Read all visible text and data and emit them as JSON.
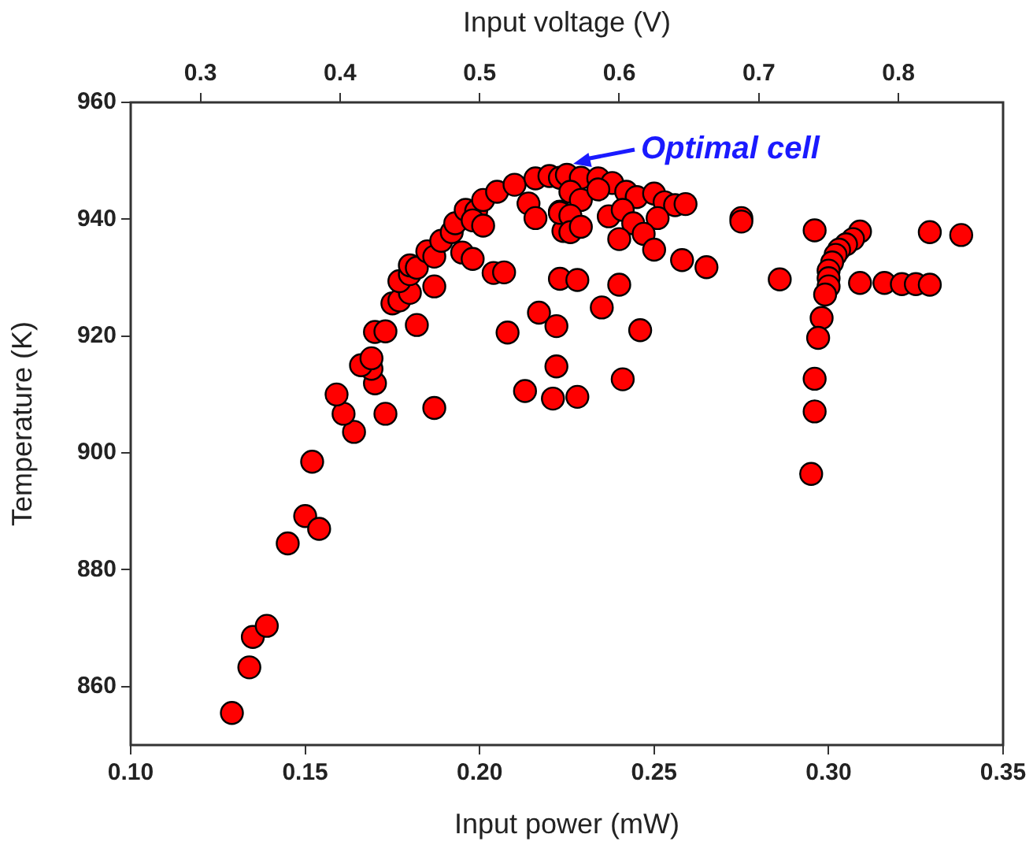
{
  "chart_data": {
    "type": "scatter",
    "xlabel": "Input power (mW)",
    "ylabel": "Temperature (K)",
    "x2label": "Input voltage (V)",
    "xlim": [
      0.1,
      0.35
    ],
    "xticks": [
      {
        "value": 0.1,
        "label": "0.10"
      },
      {
        "value": 0.15,
        "label": "0.15"
      },
      {
        "value": 0.2,
        "label": "0.20"
      },
      {
        "value": 0.25,
        "label": "0.25"
      },
      {
        "value": 0.3,
        "label": "0.30"
      },
      {
        "value": 0.35,
        "label": "0.35"
      }
    ],
    "x2lim": [
      0.25,
      0.875
    ],
    "x2ticks": [
      0.3,
      0.4,
      0.5,
      0.6,
      0.7,
      0.8
    ],
    "ylim": [
      850,
      960
    ],
    "yticks": [
      860,
      880,
      900,
      920,
      940,
      960
    ],
    "grid": false,
    "legend": false,
    "marker": "circle",
    "annotations": [
      {
        "text": "Optimal cell",
        "x": 0.225,
        "y": 947.6
      }
    ],
    "series": [
      {
        "color": "#ff0000",
        "x": [
          0.129,
          0.134,
          0.135,
          0.139,
          0.145,
          0.15,
          0.154,
          0.152,
          0.164,
          0.161,
          0.159,
          0.173,
          0.187,
          0.213,
          0.221,
          0.228,
          0.296,
          0.295,
          0.17,
          0.169,
          0.166,
          0.169,
          0.17,
          0.173,
          0.182,
          0.175,
          0.177,
          0.18,
          0.177,
          0.187,
          0.18,
          0.18,
          0.182,
          0.185,
          0.187,
          0.195,
          0.198,
          0.189,
          0.192,
          0.193,
          0.196,
          0.199,
          0.198,
          0.201,
          0.201,
          0.205,
          0.21,
          0.214,
          0.216,
          0.216,
          0.22,
          0.204,
          0.207,
          0.217,
          0.208,
          0.222,
          0.222,
          0.223,
          0.224,
          0.223,
          0.223,
          0.225,
          0.229,
          0.234,
          0.238,
          0.242,
          0.245,
          0.25,
          0.253,
          0.256,
          0.259,
          0.226,
          0.229,
          0.234,
          0.223,
          0.226,
          0.226,
          0.229,
          0.237,
          0.241,
          0.244,
          0.251,
          0.247,
          0.24,
          0.25,
          0.258,
          0.265,
          0.275,
          0.275,
          0.286,
          0.296,
          0.309,
          0.329,
          0.338,
          0.309,
          0.316,
          0.321,
          0.325,
          0.329,
          0.307,
          0.305,
          0.303,
          0.302,
          0.301,
          0.3,
          0.3,
          0.3,
          0.299,
          0.298,
          0.297,
          0.296,
          0.228,
          0.24,
          0.235,
          0.246,
          0.241
        ],
        "values": [
          855.5,
          863.3,
          868.5,
          870.4,
          884.5,
          889.2,
          887,
          898.5,
          903.6,
          906.7,
          910,
          906.7,
          907.7,
          910.6,
          909.3,
          909.6,
          907.1,
          896.4,
          911.9,
          914.4,
          915,
          916.2,
          920.7,
          920.8,
          921.9,
          925.6,
          926.1,
          927.4,
          929.4,
          928.5,
          930.6,
          932.1,
          931.7,
          934.5,
          933.6,
          934.3,
          933.2,
          936.3,
          937.8,
          939.3,
          941.6,
          941.4,
          939.8,
          938.9,
          943.3,
          944.7,
          945.9,
          942.7,
          940.2,
          947,
          947.4,
          930.8,
          930.9,
          924,
          920.6,
          921.7,
          914.8,
          941.3,
          938,
          929.8,
          947.1,
          947.6,
          947.1,
          947,
          946.2,
          944.7,
          943.8,
          944.4,
          942.9,
          942.4,
          942.6,
          944.7,
          943.3,
          945.1,
          941.1,
          940.6,
          937.8,
          938.7,
          940.5,
          941.6,
          939.3,
          940.2,
          937.5,
          936.6,
          934.8,
          933,
          931.8,
          940.2,
          939.6,
          929.7,
          938.1,
          937.9,
          937.8,
          937.3,
          929.1,
          929.1,
          928.9,
          928.9,
          928.8,
          936.6,
          935.7,
          934.8,
          933.9,
          932.6,
          931.2,
          929.9,
          928.5,
          927.1,
          923.1,
          919.7,
          912.7,
          929.6,
          928.8,
          924.9,
          921,
          912.6
        ]
      }
    ]
  }
}
